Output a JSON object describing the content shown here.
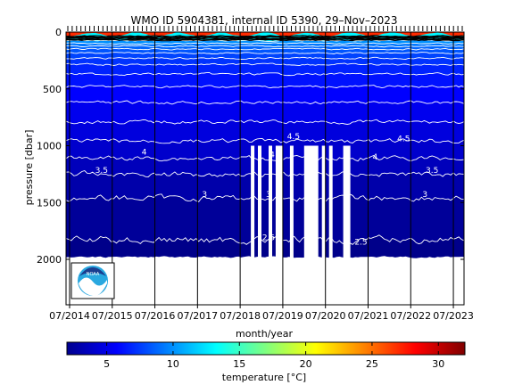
{
  "chart_data": {
    "type": "heatmap",
    "title": "WMO ID 5904381, internal ID 5390, 29–Nov–2023",
    "xlabel": "month/year",
    "ylabel": "pressure [dbar]",
    "colorbar_label": "temperature [°C]",
    "x_ticks": [
      "07/2014",
      "07/2015",
      "07/2016",
      "07/2017",
      "07/2018",
      "07/2019",
      "07/2020",
      "07/2021",
      "07/2022",
      "07/2023"
    ],
    "x_range": [
      "2014-06",
      "2023-10"
    ],
    "y_ticks": [
      0,
      500,
      1000,
      1500,
      2000
    ],
    "ylim": [
      2400,
      0
    ],
    "y_inverted": true,
    "colorbar_ticks": [
      5,
      10,
      15,
      20,
      25,
      30
    ],
    "colorbar_range": [
      2,
      32
    ],
    "colormap": "jet",
    "vertical_year_lines": true,
    "isotherm_labels": [
      {
        "x": "2015-04",
        "p": 1240,
        "label": "3.5"
      },
      {
        "x": "2016-04",
        "p": 1080,
        "label": "4"
      },
      {
        "x": "2017-09",
        "p": 1450,
        "label": "3"
      },
      {
        "x": "2019-10",
        "p": 940,
        "label": "4.5"
      },
      {
        "x": "2019-04",
        "p": 1100,
        "label": "4"
      },
      {
        "x": "2019-03",
        "p": 1450,
        "label": "3"
      },
      {
        "x": "2019-03",
        "p": 1830,
        "label": "2.5"
      },
      {
        "x": "2021-05",
        "p": 1870,
        "label": "2.5"
      },
      {
        "x": "2021-09",
        "p": 1120,
        "label": "4"
      },
      {
        "x": "2022-05",
        "p": 960,
        "label": "4.5"
      },
      {
        "x": "2022-11",
        "p": 1450,
        "label": "3"
      },
      {
        "x": "2023-01",
        "p": 1240,
        "label": "3.5"
      }
    ],
    "data_gaps": [
      {
        "start": "2018-10",
        "end": "2018-11",
        "p_top": 1000
      },
      {
        "start": "2018-12",
        "end": "2019-01",
        "p_top": 1000
      },
      {
        "start": "2019-03",
        "end": "2019-04",
        "p_top": 1000
      },
      {
        "start": "2019-05",
        "end": "2019-07",
        "p_top": 1000
      },
      {
        "start": "2019-09",
        "end": "2019-10",
        "p_top": 1000
      },
      {
        "start": "2020-01",
        "end": "2020-05",
        "p_top": 1000
      },
      {
        "start": "2020-06",
        "end": "2020-07",
        "p_top": 1000
      },
      {
        "start": "2020-08",
        "end": "2020-09",
        "p_top": 1000
      },
      {
        "start": "2020-12",
        "end": "2021-02",
        "p_top": 1000
      }
    ],
    "logo": "noaa-logo-icon"
  }
}
